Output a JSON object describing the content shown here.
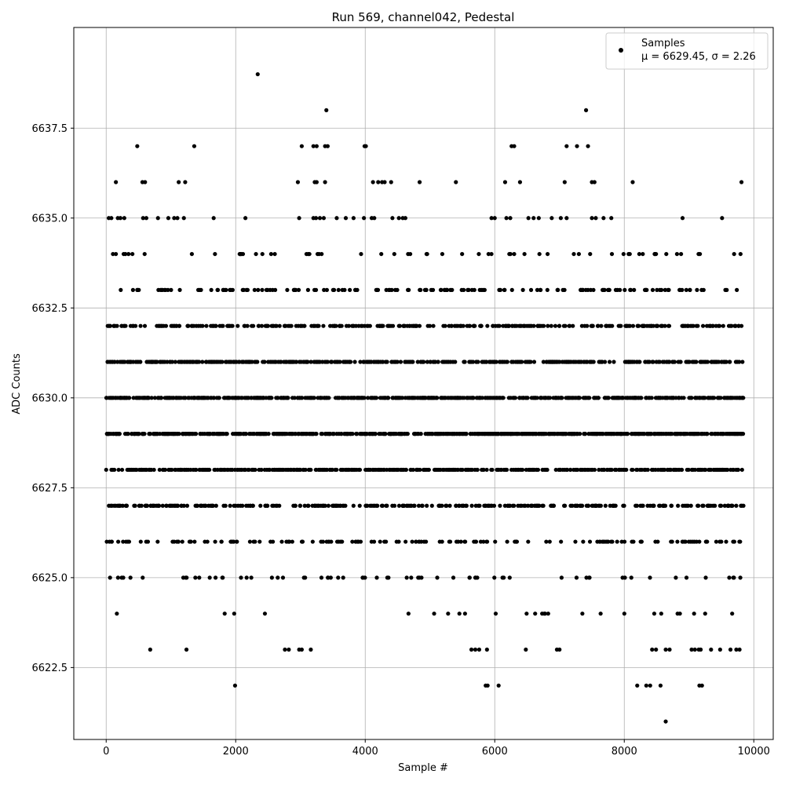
{
  "chart_data": {
    "type": "scatter",
    "title": "Run 569, channel042, Pedestal",
    "xlabel": "Sample #",
    "ylabel": "ADC Counts",
    "xlim": [
      -500,
      10300
    ],
    "ylim": [
      6620.5,
      6640.3
    ],
    "xticks": [
      0,
      2000,
      4000,
      6000,
      8000,
      10000
    ],
    "xtick_labels": [
      "0",
      "2000",
      "4000",
      "6000",
      "8000",
      "10000"
    ],
    "yticks": [
      6622.5,
      6625.0,
      6627.5,
      6630.0,
      6632.5,
      6635.0,
      6637.5
    ],
    "ytick_labels": [
      "6622.5",
      "6625.0",
      "6627.5",
      "6630.0",
      "6632.5",
      "6635.0",
      "6637.5"
    ],
    "grid": true,
    "legend_position": "top-right",
    "series": [
      {
        "name": "Samples",
        "color": "#000000",
        "legend_stats": "μ = 6629.45, σ = 2.26",
        "sample_range": [
          0,
          9840
        ],
        "mean": 6629.45,
        "std": 2.26,
        "points": [
          [
            2340,
            6639
          ],
          [
            3400,
            6638
          ],
          [
            7410,
            6638
          ],
          [
            480,
            6637
          ],
          [
            1360,
            6637
          ],
          [
            3020,
            6637
          ],
          [
            3200,
            6637
          ],
          [
            3250,
            6637
          ],
          [
            3380,
            6637
          ],
          [
            3420,
            6637
          ],
          [
            3990,
            6637
          ],
          [
            4010,
            6637
          ],
          [
            6260,
            6637
          ],
          [
            6300,
            6637
          ],
          [
            7110,
            6637
          ],
          [
            7270,
            6637
          ],
          [
            7440,
            6637
          ],
          [
            150,
            6636
          ],
          [
            560,
            6636
          ],
          [
            600,
            6636
          ],
          [
            1120,
            6636
          ],
          [
            1220,
            6636
          ],
          [
            2960,
            6636
          ],
          [
            3220,
            6636
          ],
          [
            3250,
            6636
          ],
          [
            3380,
            6636
          ],
          [
            4120,
            6636
          ],
          [
            4200,
            6636
          ],
          [
            4260,
            6636
          ],
          [
            4300,
            6636
          ],
          [
            4400,
            6636
          ],
          [
            4840,
            6636
          ],
          [
            5400,
            6636
          ],
          [
            6160,
            6636
          ],
          [
            6390,
            6636
          ],
          [
            7080,
            6636
          ],
          [
            7500,
            6636
          ],
          [
            7540,
            6636
          ],
          [
            8130,
            6636
          ],
          [
            9810,
            6636
          ],
          [
            40,
            6635
          ],
          [
            80,
            6635
          ],
          [
            180,
            6635
          ],
          [
            220,
            6635
          ],
          [
            280,
            6635
          ],
          [
            570,
            6635
          ],
          [
            620,
            6635
          ],
          [
            800,
            6635
          ],
          [
            960,
            6635
          ],
          [
            1050,
            6635
          ],
          [
            1100,
            6635
          ],
          [
            1200,
            6635
          ],
          [
            1660,
            6635
          ],
          [
            2150,
            6635
          ],
          [
            2980,
            6635
          ],
          [
            3200,
            6635
          ],
          [
            3240,
            6635
          ],
          [
            3300,
            6635
          ],
          [
            3360,
            6635
          ],
          [
            3560,
            6635
          ],
          [
            3700,
            6635
          ],
          [
            3820,
            6635
          ],
          [
            3980,
            6635
          ],
          [
            4100,
            6635
          ],
          [
            4140,
            6635
          ],
          [
            4420,
            6635
          ],
          [
            4520,
            6635
          ],
          [
            4580,
            6635
          ],
          [
            4620,
            6635
          ],
          [
            5950,
            6635
          ],
          [
            6000,
            6635
          ],
          [
            6180,
            6635
          ],
          [
            6240,
            6635
          ],
          [
            6520,
            6635
          ],
          [
            6600,
            6635
          ],
          [
            6680,
            6635
          ],
          [
            6880,
            6635
          ],
          [
            7020,
            6635
          ],
          [
            7110,
            6635
          ],
          [
            7500,
            6635
          ],
          [
            7560,
            6635
          ],
          [
            7680,
            6635
          ],
          [
            7800,
            6635
          ],
          [
            8900,
            6635
          ],
          [
            9510,
            6635
          ],
          [
            8640,
            6621
          ],
          [
            1990,
            6622
          ],
          [
            5860,
            6622
          ],
          [
            5890,
            6622
          ],
          [
            6060,
            6622
          ],
          [
            8200,
            6622
          ],
          [
            8340,
            6622
          ],
          [
            8400,
            6622
          ],
          [
            8560,
            6622
          ],
          [
            9160,
            6622
          ],
          [
            9200,
            6622
          ],
          [
            680,
            6623
          ],
          [
            1240,
            6623
          ],
          [
            2760,
            6623
          ],
          [
            2820,
            6623
          ],
          [
            2980,
            6623
          ],
          [
            3020,
            6623
          ],
          [
            3160,
            6623
          ],
          [
            5640,
            6623
          ],
          [
            5700,
            6623
          ],
          [
            5760,
            6623
          ],
          [
            5880,
            6623
          ],
          [
            6480,
            6623
          ],
          [
            6960,
            6623
          ],
          [
            7000,
            6623
          ],
          [
            8430,
            6623
          ],
          [
            8490,
            6623
          ],
          [
            8640,
            6623
          ],
          [
            8700,
            6623
          ],
          [
            9040,
            6623
          ],
          [
            9090,
            6623
          ],
          [
            9150,
            6623
          ],
          [
            9180,
            6623
          ],
          [
            9340,
            6623
          ],
          [
            9480,
            6623
          ],
          [
            9640,
            6623
          ],
          [
            9730,
            6623
          ],
          [
            9780,
            6623
          ]
        ]
      }
    ]
  }
}
